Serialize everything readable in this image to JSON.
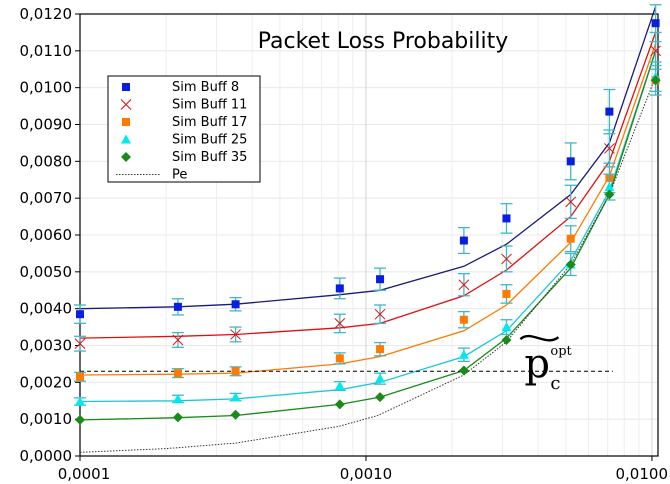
{
  "chart_data": {
    "type": "scatter",
    "title": "Packet Loss Probability",
    "xscale": "log",
    "xlim": [
      0.0001,
      0.0105
    ],
    "ylim": [
      0,
      0.012
    ],
    "x_ticks": [
      0.0001,
      0.001,
      0.01
    ],
    "x_tick_labels": [
      "0,0001",
      "0,0010",
      "0,0100"
    ],
    "y_ticks": [
      0,
      0.001,
      0.002,
      0.003,
      0.004,
      0.005,
      0.006,
      0.007,
      0.008,
      0.009,
      0.01,
      0.011,
      0.012
    ],
    "y_tick_labels": [
      "0,0000",
      "0,0010",
      "0,0020",
      "0,0030",
      "0,0040",
      "0,0050",
      "0,0060",
      "0,0070",
      "0,0080",
      "0,0090",
      "0,0100",
      "0,0110",
      "0,0120"
    ],
    "grid": true,
    "legend_position": "top-left",
    "error_bar_color": "#3fb8c8",
    "series": [
      {
        "name": "Sim Buff 8",
        "marker": "square",
        "color": "#0a1ee0",
        "line_color": "#1a1a7a",
        "x": [
          0.0001,
          0.00022,
          0.00035,
          0.00081,
          0.00112,
          0.0022,
          0.0031,
          0.0052,
          0.0071,
          0.0103
        ],
        "y": [
          0.00385,
          0.00405,
          0.00412,
          0.00455,
          0.0048,
          0.00585,
          0.00645,
          0.008,
          0.00935,
          0.01175
        ],
        "err": [
          0.00025,
          0.00022,
          0.00018,
          0.00028,
          0.0003,
          0.00035,
          0.0004,
          0.0005,
          0.0006,
          0.0005
        ],
        "fit": [
          0.004,
          0.00405,
          0.00412,
          0.00438,
          0.0045,
          0.00515,
          0.00575,
          0.0071,
          0.0085,
          0.0122
        ]
      },
      {
        "name": "Sim Buff 11",
        "marker": "bowtie",
        "color": "#e01010",
        "line_color": "#e01010",
        "x": [
          0.0001,
          0.00022,
          0.00035,
          0.00081,
          0.00112,
          0.0022,
          0.0031,
          0.0052,
          0.0071,
          0.0103
        ],
        "y": [
          0.00305,
          0.00315,
          0.0033,
          0.0036,
          0.00385,
          0.00465,
          0.00535,
          0.0069,
          0.00835,
          0.011
        ],
        "err": [
          0.0002,
          0.0002,
          0.0002,
          0.00025,
          0.00025,
          0.0003,
          0.00035,
          0.00045,
          0.0005,
          0.0005
        ],
        "fit": [
          0.0032,
          0.00325,
          0.0033,
          0.00348,
          0.0036,
          0.00435,
          0.00505,
          0.0065,
          0.008,
          0.0115
        ]
      },
      {
        "name": "Sim Buff 17",
        "marker": "square",
        "color": "#ff7a00",
        "line_color": "#ff7a00",
        "x": [
          0.0001,
          0.00022,
          0.00035,
          0.00081,
          0.00112,
          0.0022,
          0.0031,
          0.0052,
          0.0071,
          0.0103
        ],
        "y": [
          0.00215,
          0.00225,
          0.0023,
          0.00265,
          0.0029,
          0.0037,
          0.0044,
          0.0059,
          0.00755,
          0.0102
        ],
        "err": [
          0.00012,
          0.00012,
          0.00012,
          0.00015,
          0.00018,
          0.00022,
          0.00025,
          0.00035,
          0.0004,
          0.0004
        ],
        "fit": [
          0.0022,
          0.00222,
          0.00225,
          0.0025,
          0.0027,
          0.0034,
          0.0041,
          0.0058,
          0.0076,
          0.0112
        ]
      },
      {
        "name": "Sim Buff 25",
        "marker": "triangle",
        "color": "#00e8f0",
        "line_color": "#18c8d8",
        "x": [
          0.0001,
          0.00022,
          0.00035,
          0.00081,
          0.00112,
          0.0022,
          0.0031,
          0.0052,
          0.0071,
          0.0103
        ],
        "y": [
          0.00148,
          0.00155,
          0.0016,
          0.0019,
          0.0021,
          0.00275,
          0.0035,
          0.0052,
          0.0073,
          0.0103
        ],
        "err": [
          0.0001,
          0.0001,
          0.0001,
          0.00012,
          0.00015,
          0.00018,
          0.0002,
          0.0003,
          0.00035,
          0.0004
        ],
        "fit": [
          0.00148,
          0.0015,
          0.00155,
          0.0018,
          0.002,
          0.0027,
          0.0034,
          0.0053,
          0.0072,
          0.011
        ]
      },
      {
        "name": "Sim Buff 35",
        "marker": "diamond",
        "color": "#1a8a1a",
        "line_color": "#1a8a1a",
        "x": [
          0.0001,
          0.00022,
          0.00035,
          0.00081,
          0.00112,
          0.0022,
          0.0031,
          0.0052,
          0.0071,
          0.0103
        ],
        "y": [
          0.00098,
          0.00105,
          0.00112,
          0.0014,
          0.0016,
          0.00232,
          0.00315,
          0.0052,
          0.0071,
          0.0102
        ],
        "err": [
          0,
          0,
          0,
          0,
          0,
          0,
          0,
          0,
          0,
          0
        ],
        "fit": [
          0.00098,
          0.00104,
          0.0011,
          0.0014,
          0.0016,
          0.00232,
          0.0032,
          0.0051,
          0.0071,
          0.011
        ]
      },
      {
        "name": "Pe",
        "marker": "none",
        "color": "#333333",
        "line_color": "#333333",
        "dotted": true,
        "x": [
          0.0001,
          0.0002,
          0.00035,
          0.0008,
          0.0011,
          0.0022,
          0.0031,
          0.0052,
          0.0071,
          0.0103
        ],
        "fit": [
          0.0001,
          0.0002,
          0.00035,
          0.0008,
          0.0011,
          0.0022,
          0.0031,
          0.0052,
          0.0071,
          0.0103
        ]
      }
    ],
    "reference_line": {
      "y": 0.0023,
      "x_from": 0.0001,
      "x_to": 0.0073,
      "style": "dashed"
    },
    "annotation": {
      "base": "p",
      "subscript": "c",
      "superscript": "opt",
      "x": 0.0071,
      "y": 0.0029
    }
  }
}
